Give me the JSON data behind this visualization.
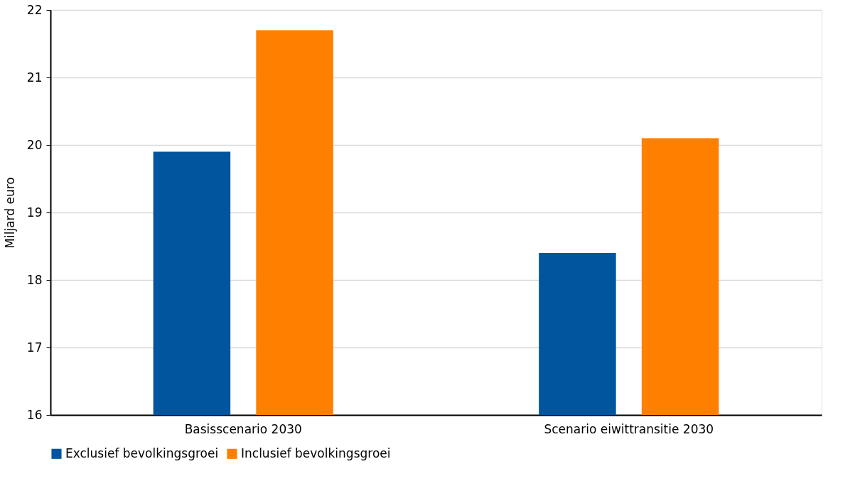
{
  "chart_data": {
    "type": "bar",
    "ylabel": "Miljard euro",
    "categories": [
      "Basisscenario 2030",
      "Scenario eiwittransitie 2030"
    ],
    "series": [
      {
        "name": "Exclusief bevolkingsgroei",
        "color": "#00559f",
        "values": [
          19.9,
          18.4
        ]
      },
      {
        "name": "Inclusief bevolkingsgroei",
        "color": "#ff7f00",
        "values": [
          21.7,
          20.1
        ]
      }
    ],
    "ylim": [
      16,
      22
    ],
    "yticks": [
      16,
      17,
      18,
      19,
      20,
      21,
      22
    ],
    "grid": "y",
    "legend": "bottom"
  }
}
